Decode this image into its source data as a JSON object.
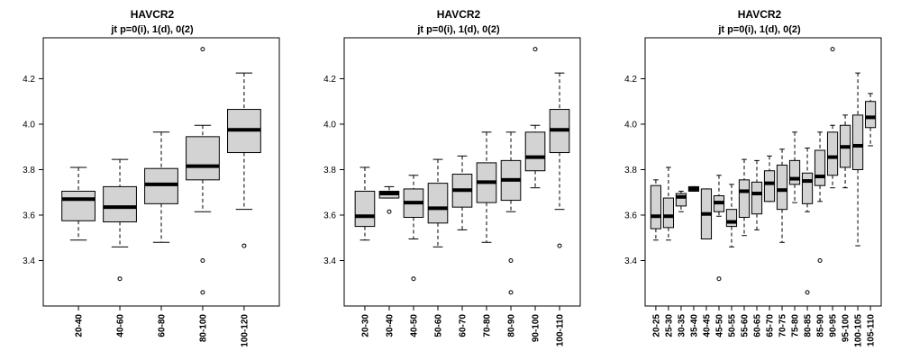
{
  "chart_data": [
    {
      "type": "boxplot",
      "title": "HAVCR2",
      "subtitle": "jt p=0(i), 1(d), 0(2)",
      "ylim": [
        3.2,
        4.38
      ],
      "yticks": [
        "3.4",
        "3.6",
        "3.8",
        "4.0",
        "4.2"
      ],
      "categories": [
        "20-40",
        "40-60",
        "60-80",
        "80-100",
        "100-120"
      ],
      "boxes": [
        {
          "whisker_low": 3.49,
          "q1": 3.575,
          "median": 3.67,
          "q3": 3.705,
          "whisker_high": 3.81,
          "outliers": []
        },
        {
          "whisker_low": 3.46,
          "q1": 3.57,
          "median": 3.635,
          "q3": 3.725,
          "whisker_high": 3.845,
          "outliers": [
            3.32
          ]
        },
        {
          "whisker_low": 3.48,
          "q1": 3.65,
          "median": 3.735,
          "q3": 3.805,
          "whisker_high": 3.965,
          "outliers": []
        },
        {
          "whisker_low": 3.615,
          "q1": 3.755,
          "median": 3.815,
          "q3": 3.945,
          "whisker_high": 3.995,
          "outliers": [
            4.33,
            3.4,
            3.26
          ]
        },
        {
          "whisker_low": 3.625,
          "q1": 3.875,
          "median": 3.975,
          "q3": 4.065,
          "whisker_high": 4.225,
          "outliers": [
            3.465
          ]
        }
      ]
    },
    {
      "type": "boxplot",
      "title": "HAVCR2",
      "subtitle": "jt p=0(i), 1(d), 0(2)",
      "ylim": [
        3.2,
        4.38
      ],
      "yticks": [
        "3.4",
        "3.6",
        "3.8",
        "4.0",
        "4.2"
      ],
      "categories": [
        "20-30",
        "30-40",
        "40-50",
        "50-60",
        "60-70",
        "70-80",
        "80-90",
        "90-100",
        "100-110"
      ],
      "boxes": [
        {
          "whisker_low": 3.49,
          "q1": 3.55,
          "median": 3.595,
          "q3": 3.705,
          "whisker_high": 3.81,
          "outliers": []
        },
        {
          "whisker_low": 3.675,
          "q1": 3.675,
          "median": 3.695,
          "q3": 3.705,
          "whisker_high": 3.725,
          "outliers": [
            3.615
          ]
        },
        {
          "whisker_low": 3.495,
          "q1": 3.59,
          "median": 3.655,
          "q3": 3.715,
          "whisker_high": 3.775,
          "outliers": [
            3.32
          ]
        },
        {
          "whisker_low": 3.46,
          "q1": 3.565,
          "median": 3.63,
          "q3": 3.74,
          "whisker_high": 3.845,
          "outliers": []
        },
        {
          "whisker_low": 3.535,
          "q1": 3.635,
          "median": 3.71,
          "q3": 3.78,
          "whisker_high": 3.86,
          "outliers": []
        },
        {
          "whisker_low": 3.48,
          "q1": 3.655,
          "median": 3.745,
          "q3": 3.83,
          "whisker_high": 3.965,
          "outliers": []
        },
        {
          "whisker_low": 3.615,
          "q1": 3.665,
          "median": 3.755,
          "q3": 3.84,
          "whisker_high": 3.965,
          "outliers": [
            3.4,
            3.26
          ]
        },
        {
          "whisker_low": 3.72,
          "q1": 3.795,
          "median": 3.855,
          "q3": 3.965,
          "whisker_high": 3.995,
          "outliers": [
            4.33
          ]
        },
        {
          "whisker_low": 3.625,
          "q1": 3.875,
          "median": 3.975,
          "q3": 4.065,
          "whisker_high": 4.225,
          "outliers": [
            3.465
          ]
        }
      ]
    },
    {
      "type": "boxplot",
      "title": "HAVCR2",
      "subtitle": "jt p=0(i), 1(d), 0(2)",
      "ylim": [
        3.2,
        4.38
      ],
      "yticks": [
        "3.4",
        "3.6",
        "3.8",
        "4.0",
        "4.2"
      ],
      "categories": [
        "20-25",
        "25-30",
        "30-35",
        "35-40",
        "40-45",
        "45-50",
        "50-55",
        "55-60",
        "60-65",
        "65-70",
        "70-75",
        "75-80",
        "80-85",
        "85-90",
        "90-95",
        "95-100",
        "100-105",
        "105-110"
      ],
      "boxes": [
        {
          "whisker_low": 3.49,
          "q1": 3.54,
          "median": 3.595,
          "q3": 3.73,
          "whisker_high": 3.755,
          "outliers": []
        },
        {
          "whisker_low": 3.49,
          "q1": 3.545,
          "median": 3.595,
          "q3": 3.675,
          "whisker_high": 3.81,
          "outliers": []
        },
        {
          "whisker_low": 3.615,
          "q1": 3.64,
          "median": 3.68,
          "q3": 3.695,
          "whisker_high": 3.705,
          "outliers": []
        },
        {
          "whisker_low": 3.705,
          "q1": 3.705,
          "median": 3.715,
          "q3": 3.725,
          "whisker_high": 3.725,
          "outliers": []
        },
        {
          "whisker_low": 3.495,
          "q1": 3.495,
          "median": 3.605,
          "q3": 3.715,
          "whisker_high": 3.715,
          "outliers": []
        },
        {
          "whisker_low": 3.595,
          "q1": 3.615,
          "median": 3.655,
          "q3": 3.685,
          "whisker_high": 3.775,
          "outliers": [
            3.32
          ]
        },
        {
          "whisker_low": 3.46,
          "q1": 3.55,
          "median": 3.57,
          "q3": 3.625,
          "whisker_high": 3.735,
          "outliers": []
        },
        {
          "whisker_low": 3.51,
          "q1": 3.59,
          "median": 3.705,
          "q3": 3.755,
          "whisker_high": 3.845,
          "outliers": []
        },
        {
          "whisker_low": 3.535,
          "q1": 3.605,
          "median": 3.695,
          "q3": 3.745,
          "whisker_high": 3.84,
          "outliers": []
        },
        {
          "whisker_low": 3.66,
          "q1": 3.66,
          "median": 3.74,
          "q3": 3.795,
          "whisker_high": 3.86,
          "outliers": []
        },
        {
          "whisker_low": 3.48,
          "q1": 3.625,
          "median": 3.71,
          "q3": 3.82,
          "whisker_high": 3.89,
          "outliers": []
        },
        {
          "whisker_low": 3.655,
          "q1": 3.735,
          "median": 3.76,
          "q3": 3.84,
          "whisker_high": 3.965,
          "outliers": []
        },
        {
          "whisker_low": 3.615,
          "q1": 3.65,
          "median": 3.75,
          "q3": 3.785,
          "whisker_high": 3.895,
          "outliers": [
            3.26
          ]
        },
        {
          "whisker_low": 3.66,
          "q1": 3.73,
          "median": 3.77,
          "q3": 3.885,
          "whisker_high": 3.965,
          "outliers": [
            3.4
          ]
        },
        {
          "whisker_low": 3.72,
          "q1": 3.775,
          "median": 3.855,
          "q3": 3.965,
          "whisker_high": 3.995,
          "outliers": [
            4.33
          ]
        },
        {
          "whisker_low": 3.72,
          "q1": 3.81,
          "median": 3.9,
          "q3": 3.995,
          "whisker_high": 4.04,
          "outliers": []
        },
        {
          "whisker_low": 3.465,
          "q1": 3.8,
          "median": 3.905,
          "q3": 4.04,
          "whisker_high": 4.225,
          "outliers": []
        },
        {
          "whisker_low": 3.905,
          "q1": 3.985,
          "median": 4.03,
          "q3": 4.1,
          "whisker_high": 4.135,
          "outliers": []
        }
      ]
    }
  ]
}
